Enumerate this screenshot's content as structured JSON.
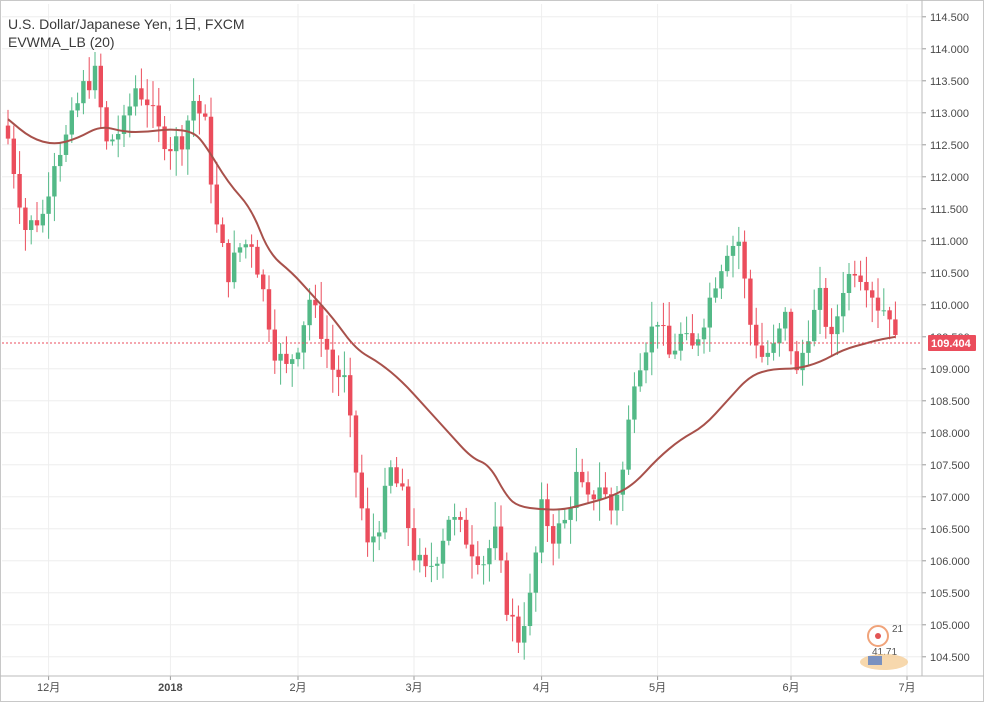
{
  "legend": {
    "title": "U.S. Dollar/Japanese Yen, 1日, FXCM",
    "indicator": "EVWMA_LB (20)"
  },
  "colors": {
    "up": "#53b987",
    "down": "#eb4d5c",
    "ma": "#a8514b",
    "grid": "#eeeeee",
    "price_line": "#eb4d5c"
  },
  "chart_data": {
    "type": "candlestick",
    "instrument": "U.S. Dollar/Japanese Yen",
    "timeframe": "1日",
    "source": "FXCM",
    "ylim": [
      104.2,
      114.7
    ],
    "yticks": [
      "114.500",
      "114.000",
      "113.500",
      "113.000",
      "112.500",
      "112.000",
      "111.500",
      "111.000",
      "110.500",
      "110.000",
      "109.500",
      "109.000",
      "108.500",
      "108.000",
      "107.500",
      "107.000",
      "106.500",
      "106.000",
      "105.500",
      "105.000",
      "104.500"
    ],
    "xlim": [
      0,
      154
    ],
    "xticks": [
      {
        "label": "12月",
        "bold": false,
        "index": 7
      },
      {
        "label": "2018",
        "bold": true,
        "index": 28
      },
      {
        "label": "2月",
        "bold": false,
        "index": 50
      },
      {
        "label": "3月",
        "bold": false,
        "index": 70
      },
      {
        "label": "4月",
        "bold": false,
        "index": 92
      },
      {
        "label": "5月",
        "bold": false,
        "index": 112
      },
      {
        "label": "6月",
        "bold": false,
        "index": 135
      },
      {
        "label": "7月",
        "bold": false,
        "index": 155
      }
    ],
    "last_price": "109.404",
    "candles_anchor_points": [
      {
        "i": 0,
        "c": 112.6
      },
      {
        "i": 3,
        "c": 111.2
      },
      {
        "i": 6,
        "c": 111.4
      },
      {
        "i": 8,
        "c": 112.3
      },
      {
        "i": 10,
        "c": 112.6
      },
      {
        "i": 13,
        "c": 113.4
      },
      {
        "i": 15,
        "c": 113.6
      },
      {
        "i": 17,
        "c": 112.5
      },
      {
        "i": 20,
        "c": 112.8
      },
      {
        "i": 22,
        "c": 113.4
      },
      {
        "i": 24,
        "c": 113.2
      },
      {
        "i": 26,
        "c": 112.7
      },
      {
        "i": 28,
        "c": 112.5
      },
      {
        "i": 30,
        "c": 112.6
      },
      {
        "i": 32,
        "c": 113.2
      },
      {
        "i": 34,
        "c": 112.8
      },
      {
        "i": 36,
        "c": 111.2
      },
      {
        "i": 38,
        "c": 110.5
      },
      {
        "i": 40,
        "c": 110.9
      },
      {
        "i": 42,
        "c": 111.0
      },
      {
        "i": 44,
        "c": 110.2
      },
      {
        "i": 46,
        "c": 109.3
      },
      {
        "i": 48,
        "c": 109.0
      },
      {
        "i": 50,
        "c": 109.4
      },
      {
        "i": 52,
        "c": 110.1
      },
      {
        "i": 54,
        "c": 109.6
      },
      {
        "i": 56,
        "c": 109.0
      },
      {
        "i": 58,
        "c": 108.8
      },
      {
        "i": 60,
        "c": 107.4
      },
      {
        "i": 62,
        "c": 106.2
      },
      {
        "i": 64,
        "c": 106.6
      },
      {
        "i": 66,
        "c": 107.4
      },
      {
        "i": 68,
        "c": 107.0
      },
      {
        "i": 70,
        "c": 106.1
      },
      {
        "i": 72,
        "c": 105.8
      },
      {
        "i": 74,
        "c": 106.1
      },
      {
        "i": 76,
        "c": 106.7
      },
      {
        "i": 78,
        "c": 106.5
      },
      {
        "i": 80,
        "c": 106.2
      },
      {
        "i": 82,
        "c": 106.0
      },
      {
        "i": 84,
        "c": 106.4
      },
      {
        "i": 86,
        "c": 105.3
      },
      {
        "i": 88,
        "c": 104.8
      },
      {
        "i": 90,
        "c": 105.4
      },
      {
        "i": 92,
        "c": 106.8
      },
      {
        "i": 94,
        "c": 106.4
      },
      {
        "i": 96,
        "c": 106.6
      },
      {
        "i": 98,
        "c": 107.3
      },
      {
        "i": 100,
        "c": 106.9
      },
      {
        "i": 102,
        "c": 107.2
      },
      {
        "i": 104,
        "c": 106.8
      },
      {
        "i": 106,
        "c": 107.4
      },
      {
        "i": 108,
        "c": 108.9
      },
      {
        "i": 110,
        "c": 109.4
      },
      {
        "i": 112,
        "c": 109.8
      },
      {
        "i": 114,
        "c": 109.2
      },
      {
        "i": 116,
        "c": 109.5
      },
      {
        "i": 118,
        "c": 109.3
      },
      {
        "i": 120,
        "c": 109.8
      },
      {
        "i": 122,
        "c": 110.4
      },
      {
        "i": 124,
        "c": 110.9
      },
      {
        "i": 126,
        "c": 111.0
      },
      {
        "i": 128,
        "c": 109.7
      },
      {
        "i": 130,
        "c": 109.2
      },
      {
        "i": 132,
        "c": 109.3
      },
      {
        "i": 134,
        "c": 109.8
      },
      {
        "i": 136,
        "c": 108.9
      },
      {
        "i": 138,
        "c": 109.6
      },
      {
        "i": 140,
        "c": 110.1
      },
      {
        "i": 142,
        "c": 109.4
      },
      {
        "i": 144,
        "c": 110.3
      },
      {
        "i": 146,
        "c": 110.6
      },
      {
        "i": 148,
        "c": 110.4
      },
      {
        "i": 150,
        "c": 110.0
      },
      {
        "i": 152,
        "c": 109.9
      },
      {
        "i": 153,
        "c": 109.4
      }
    ],
    "ma_points": [
      {
        "i": 0,
        "v": 112.9
      },
      {
        "i": 4,
        "v": 112.6
      },
      {
        "i": 8,
        "v": 112.5
      },
      {
        "i": 12,
        "v": 112.6
      },
      {
        "i": 16,
        "v": 112.8
      },
      {
        "i": 20,
        "v": 112.7
      },
      {
        "i": 24,
        "v": 112.7
      },
      {
        "i": 28,
        "v": 112.75
      },
      {
        "i": 32,
        "v": 112.7
      },
      {
        "i": 34,
        "v": 112.5
      },
      {
        "i": 38,
        "v": 111.9
      },
      {
        "i": 42,
        "v": 111.5
      },
      {
        "i": 45,
        "v": 110.8
      },
      {
        "i": 49,
        "v": 110.5
      },
      {
        "i": 52,
        "v": 110.2
      },
      {
        "i": 56,
        "v": 109.8
      },
      {
        "i": 60,
        "v": 109.3
      },
      {
        "i": 64,
        "v": 109.1
      },
      {
        "i": 68,
        "v": 108.8
      },
      {
        "i": 72,
        "v": 108.4
      },
      {
        "i": 76,
        "v": 108.0
      },
      {
        "i": 80,
        "v": 107.6
      },
      {
        "i": 83,
        "v": 107.5
      },
      {
        "i": 86,
        "v": 107.0
      },
      {
        "i": 88,
        "v": 106.85
      },
      {
        "i": 92,
        "v": 106.8
      },
      {
        "i": 96,
        "v": 106.8
      },
      {
        "i": 100,
        "v": 106.9
      },
      {
        "i": 104,
        "v": 107.0
      },
      {
        "i": 108,
        "v": 107.2
      },
      {
        "i": 112,
        "v": 107.6
      },
      {
        "i": 116,
        "v": 107.9
      },
      {
        "i": 120,
        "v": 108.1
      },
      {
        "i": 124,
        "v": 108.5
      },
      {
        "i": 128,
        "v": 108.9
      },
      {
        "i": 132,
        "v": 109.0
      },
      {
        "i": 136,
        "v": 109.0
      },
      {
        "i": 140,
        "v": 109.1
      },
      {
        "i": 144,
        "v": 109.3
      },
      {
        "i": 148,
        "v": 109.4
      },
      {
        "i": 150,
        "v": 109.45
      },
      {
        "i": 153,
        "v": 109.5
      }
    ]
  },
  "watermark": {
    "icon": "badge-icon",
    "line1": "21",
    "line2": "41.71"
  }
}
